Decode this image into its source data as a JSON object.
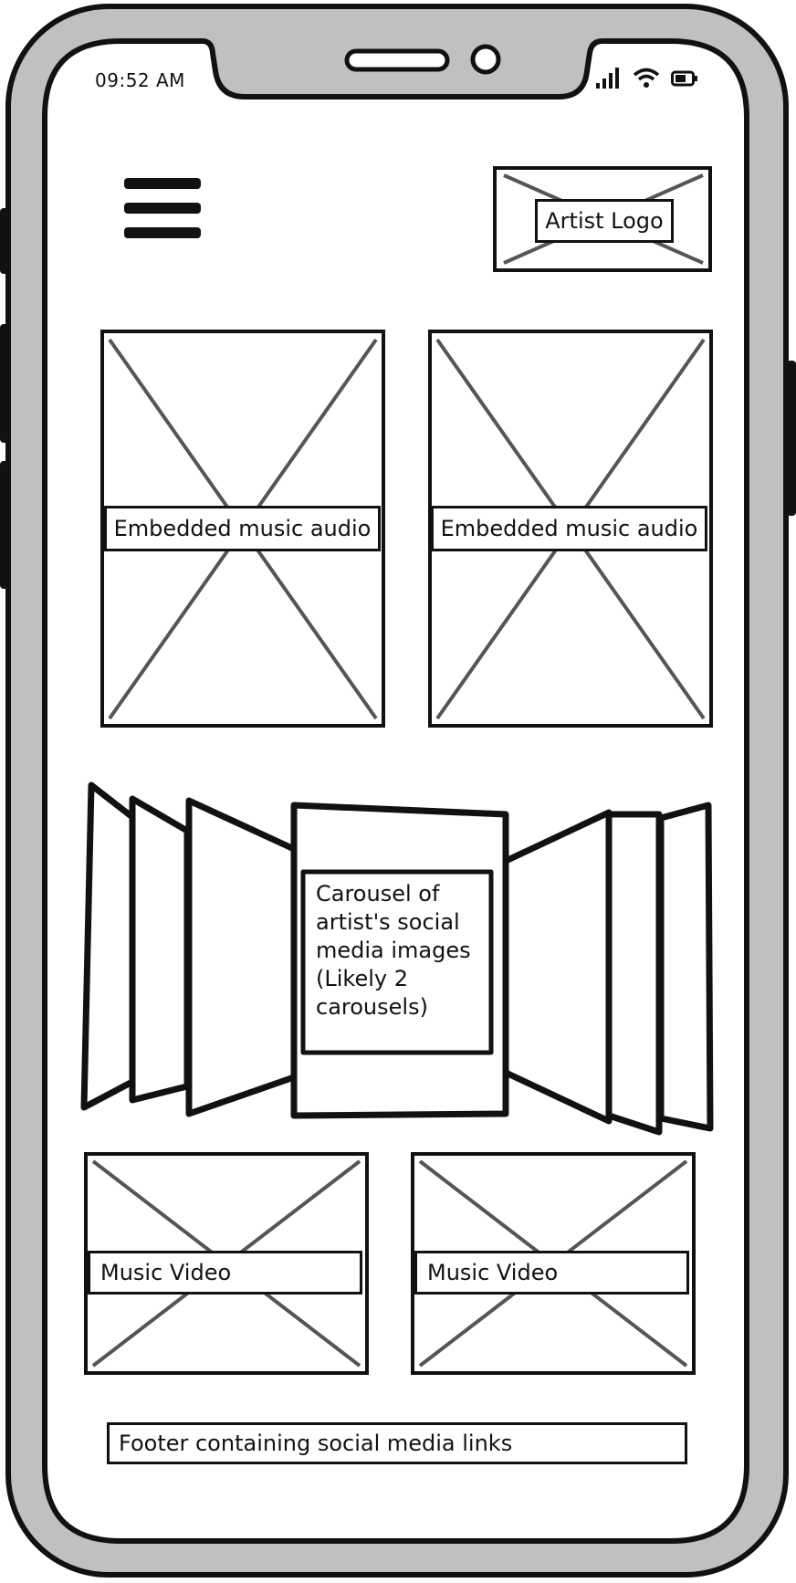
{
  "status_bar": {
    "time": "09:52 AM",
    "icons": [
      "signal-icon",
      "wifi-icon",
      "battery-icon"
    ]
  },
  "header": {
    "menu_icon": "hamburger-menu-icon",
    "logo_label": "Artist Logo"
  },
  "audio_embeds": [
    {
      "label": "Embedded music audio"
    },
    {
      "label": "Embedded music audio"
    }
  ],
  "carousel": {
    "label": "Carousel of artist's social media images (Likely 2 carousels)"
  },
  "videos": [
    {
      "label": "Music Video"
    },
    {
      "label": "Music Video"
    }
  ],
  "footer": {
    "label": "Footer containing social media links"
  }
}
